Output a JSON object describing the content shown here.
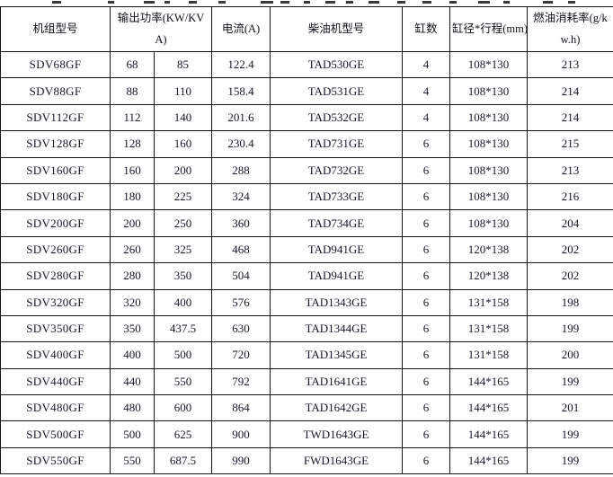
{
  "accent_colors": {
    "border": "#161616",
    "text": "#18182a",
    "background": "#ffffff"
  },
  "chart_data": {
    "type": "table",
    "title": "",
    "header": [
      {
        "label": "机组型号",
        "colspan": 1
      },
      {
        "label": "输出功率(KW/KVA)",
        "colspan": 2
      },
      {
        "label": "电流(A)",
        "colspan": 1
      },
      {
        "label": "柴油机型号",
        "colspan": 1
      },
      {
        "label": "缸数",
        "colspan": 1
      },
      {
        "label": "缸径*行程(mm)",
        "colspan": 1
      },
      {
        "label": "燃油消耗率(g/kw.h)",
        "colspan": 1
      }
    ],
    "columns_flat": [
      "机组型号",
      "输出功率(KW)",
      "输出功率(KVA)",
      "电流(A)",
      "柴油机型号",
      "缸数",
      "缸径*行程(mm)",
      "燃油消耗率(g/kw.h)"
    ],
    "rows": [
      [
        "SDV68GF",
        "68",
        "85",
        "122.4",
        "TAD530GE",
        "4",
        "108*130",
        "213"
      ],
      [
        "SDV88GF",
        "88",
        "110",
        "158.4",
        "TAD531GE",
        "4",
        "108*130",
        "214"
      ],
      [
        "SDV112GF",
        "112",
        "140",
        "201.6",
        "TAD532GE",
        "4",
        "108*130",
        "214"
      ],
      [
        "SDV128GF",
        "128",
        "160",
        "230.4",
        "TAD731GE",
        "6",
        "108*130",
        "215"
      ],
      [
        "SDV160GF",
        "160",
        "200",
        "288",
        "TAD732GE",
        "6",
        "108*130",
        "213"
      ],
      [
        "SDV180GF",
        "180",
        "225",
        "324",
        "TAD733GE",
        "6",
        "108*130",
        "216"
      ],
      [
        "SDV200GF",
        "200",
        "250",
        "360",
        "TAD734GE",
        "6",
        "108*130",
        "204"
      ],
      [
        "SDV260GF",
        "260",
        "325",
        "468",
        "TAD941GE",
        "6",
        "120*138",
        "202"
      ],
      [
        "SDV280GF",
        "280",
        "350",
        "504",
        "TAD941GE",
        "6",
        "120*138",
        "202"
      ],
      [
        "SDV320GF",
        "320",
        "400",
        "576",
        "TAD1343GE",
        "6",
        "131*158",
        "198"
      ],
      [
        "SDV350GF",
        "350",
        "437.5",
        "630",
        "TAD1344GE",
        "6",
        "131*158",
        "199"
      ],
      [
        "SDV400GF",
        "400",
        "500",
        "720",
        "TAD1345GE",
        "6",
        "131*158",
        "200"
      ],
      [
        "SDV440GF",
        "440",
        "550",
        "792",
        "TAD1641GE",
        "6",
        "144*165",
        "199"
      ],
      [
        "SDV480GF",
        "480",
        "600",
        "864",
        "TAD1642GE",
        "6",
        "144*165",
        "201"
      ],
      [
        "SDV500GF",
        "500",
        "625",
        "900",
        "TWD1643GE",
        "6",
        "144*165",
        "199"
      ],
      [
        "SDV550GF",
        "550",
        "687.5",
        "990",
        "FWD1643GE",
        "6",
        "144*165",
        "199"
      ]
    ]
  }
}
